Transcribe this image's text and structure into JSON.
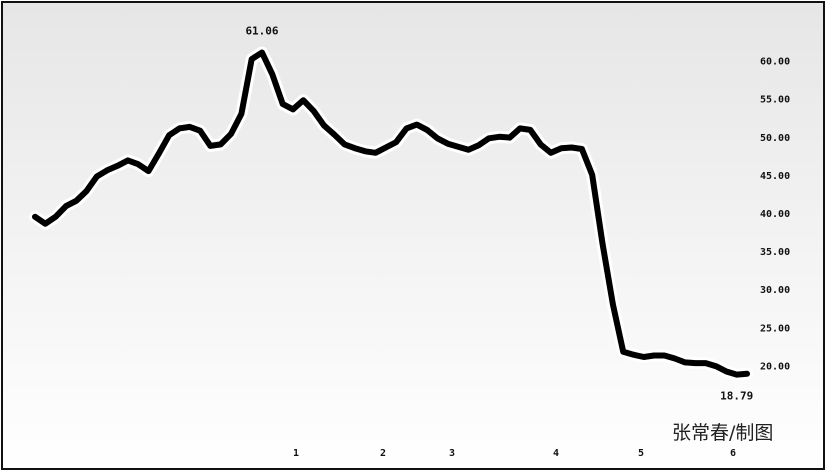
{
  "chart_data": {
    "type": "line",
    "title": "",
    "xlabel": "",
    "ylabel": "",
    "ylim": [
      15,
      64
    ],
    "y_ticks": [
      "60.00",
      "55.00",
      "50.00",
      "45.00",
      "40.00",
      "35.00",
      "30.00",
      "25.00",
      "20.00"
    ],
    "x_ticks": [
      "1",
      "2",
      "3",
      "4",
      "5",
      "6"
    ],
    "grid": false,
    "annotations": {
      "max_label": "61.06",
      "min_label": "18.79"
    },
    "series": [
      {
        "values": [
          39.5,
          38.6,
          39.5,
          40.9,
          41.6,
          42.9,
          44.8,
          45.6,
          46.2,
          46.9,
          46.4,
          45.5,
          47.8,
          50.2,
          51.1,
          51.3,
          50.8,
          48.8,
          49.0,
          50.4,
          53.0,
          60.2,
          61.06,
          58.2,
          54.3,
          53.6,
          54.8,
          53.4,
          51.5,
          50.3,
          49.0,
          48.5,
          48.1,
          47.9,
          48.6,
          49.3,
          51.1,
          51.6,
          50.9,
          49.8,
          49.1,
          48.7,
          48.3,
          48.9,
          49.8,
          50.0,
          49.9,
          51.1,
          50.9,
          49.0,
          47.9,
          48.5,
          48.6,
          48.4,
          45.0,
          36.0,
          28.0,
          21.8,
          21.4,
          21.1,
          21.3,
          21.3,
          20.9,
          20.4,
          20.3,
          20.3,
          19.9,
          19.2,
          18.79,
          18.9
        ]
      }
    ]
  },
  "credit": "张常春/制图"
}
